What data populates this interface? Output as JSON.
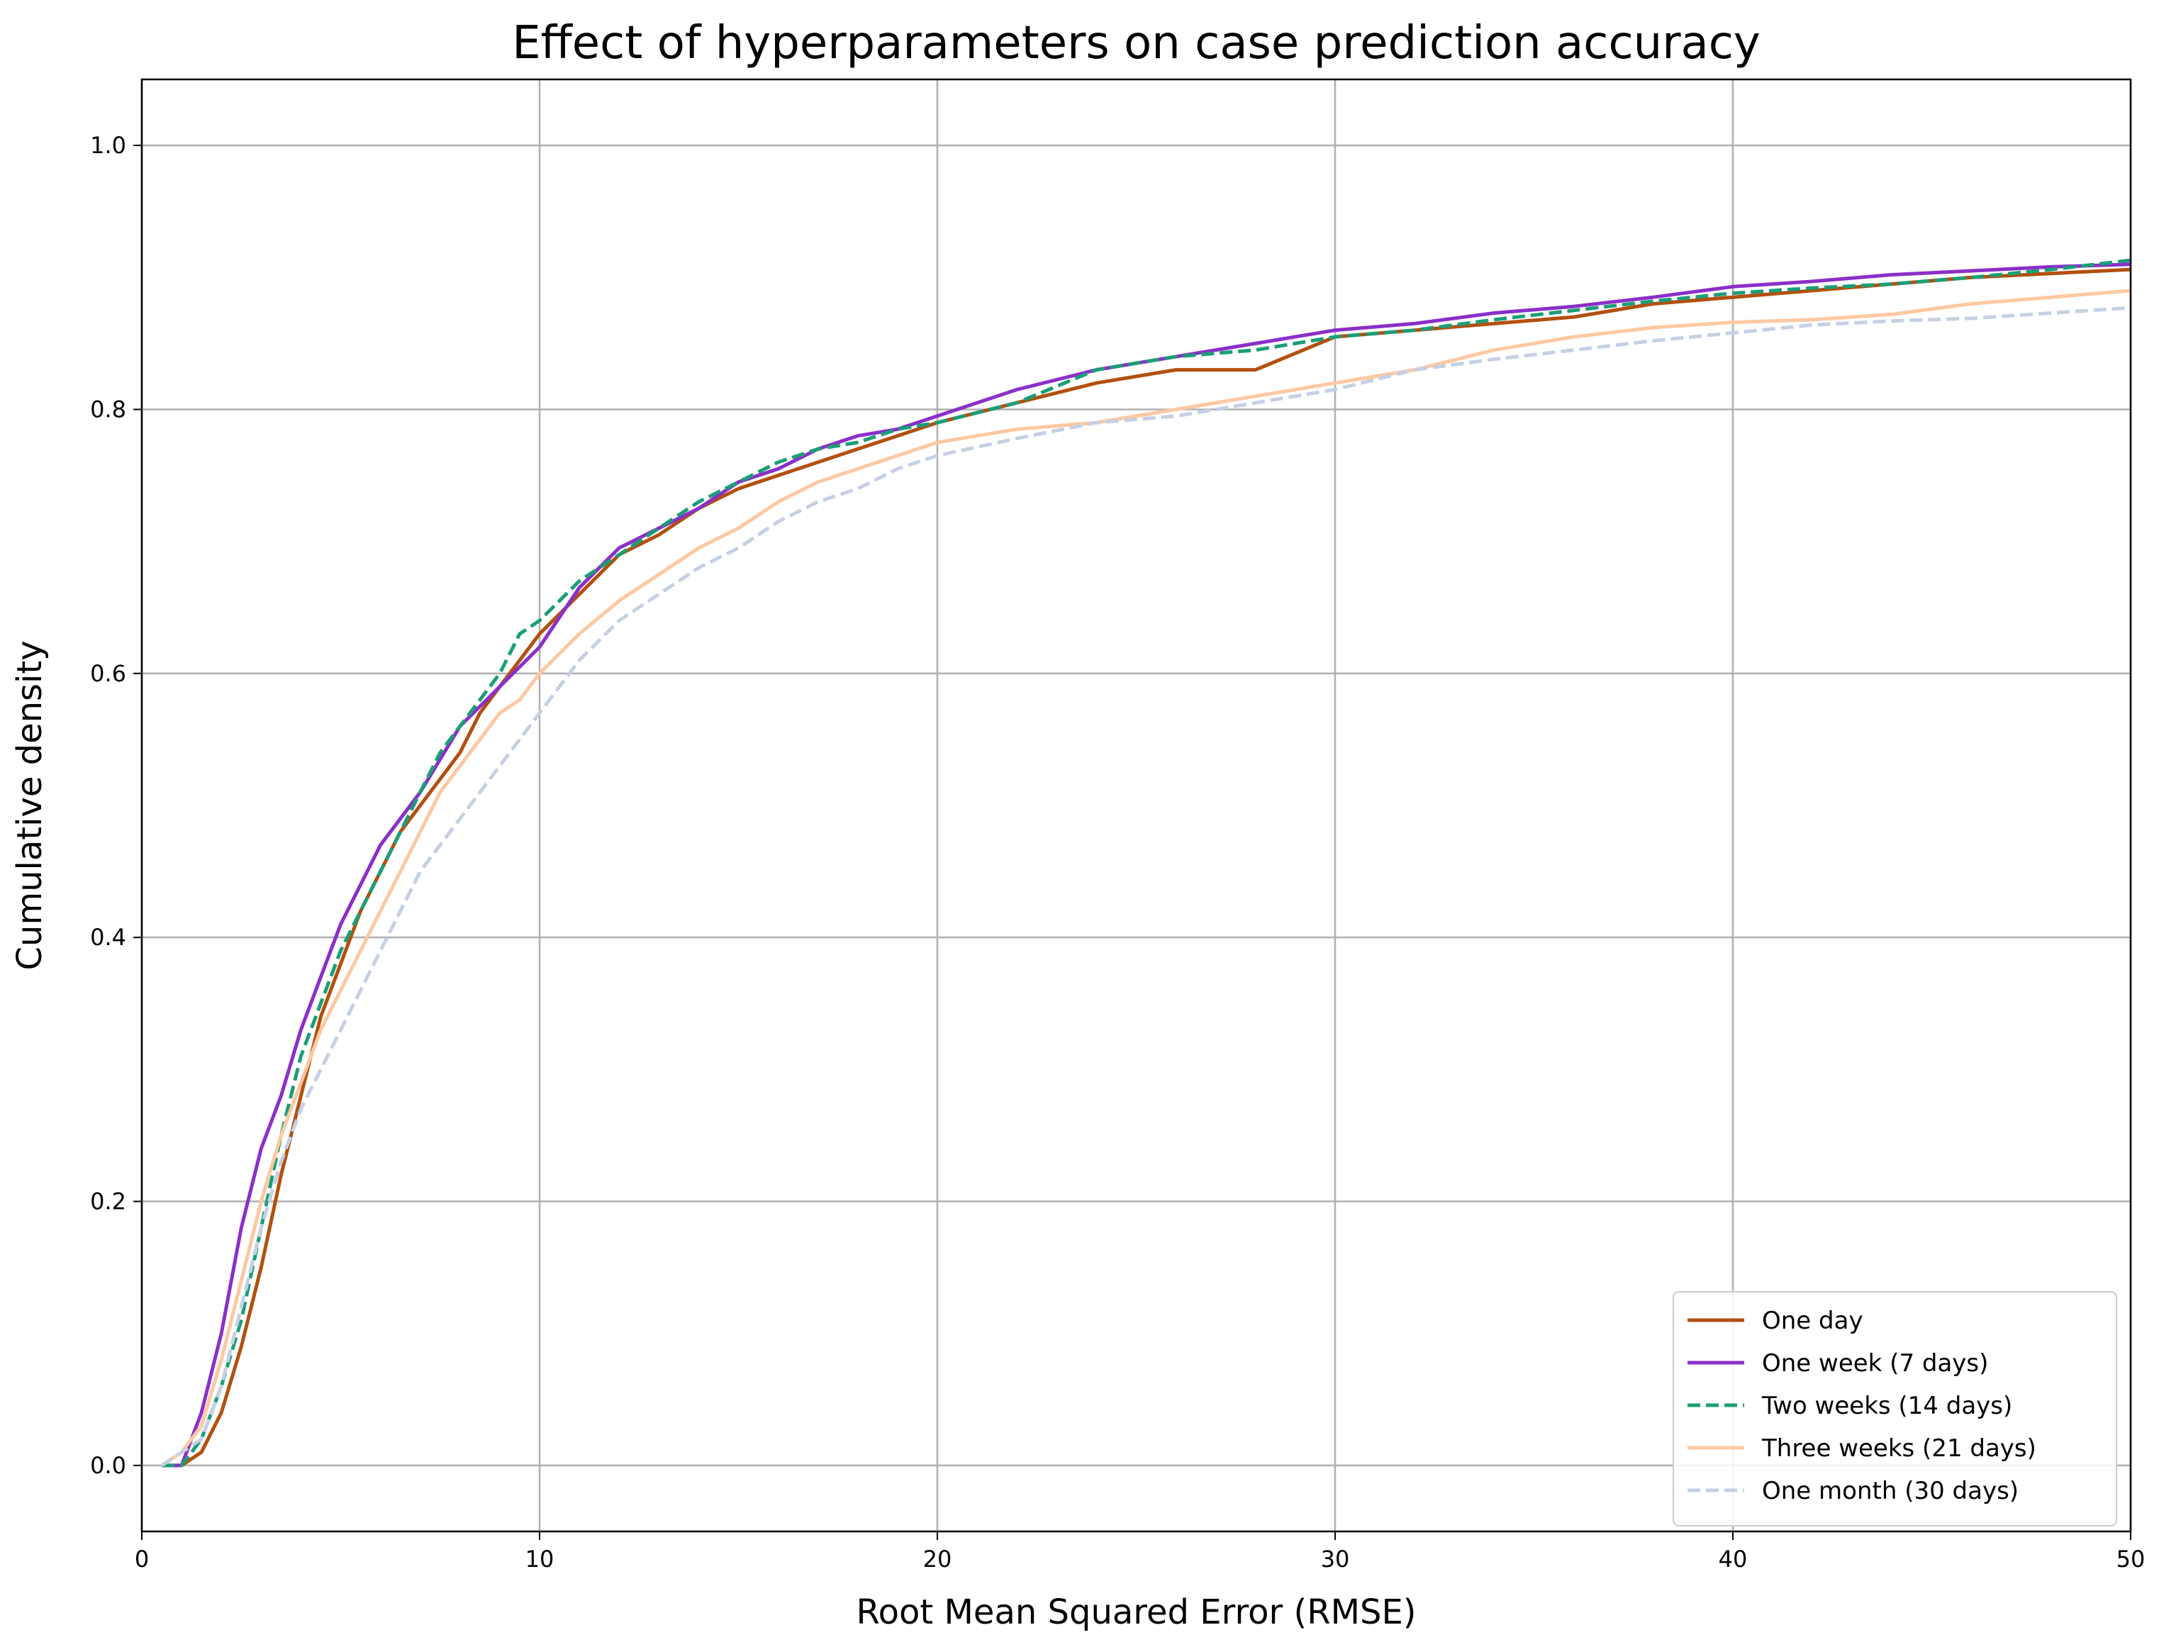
{
  "chart_data": {
    "type": "line",
    "title": "Effect of hyperparameters on case prediction accuracy",
    "xlabel": "Root Mean Squared Error (RMSE)",
    "ylabel": "Cumulative density",
    "xlim": [
      0,
      50
    ],
    "ylim": [
      -0.05,
      1.05
    ],
    "x_ticks": [
      0,
      10,
      20,
      30,
      40,
      50
    ],
    "x_tick_labels": [
      "0",
      "10",
      "20",
      "30",
      "40",
      "50"
    ],
    "y_ticks": [
      0.0,
      0.2,
      0.4,
      0.6,
      0.8,
      1.0
    ],
    "y_tick_labels": [
      "0.0",
      "0.2",
      "0.4",
      "0.6",
      "0.8",
      "1.0"
    ],
    "grid": true,
    "legend_position": "lower-right",
    "series": [
      {
        "name": "One day",
        "color": "#b2500f",
        "dash": "solid",
        "x": [
          0.5,
          1.0,
          1.5,
          2.0,
          2.5,
          3.0,
          3.5,
          4.0,
          4.5,
          5.0,
          5.5,
          6.0,
          6.5,
          7.0,
          7.5,
          8.0,
          8.5,
          9.0,
          9.5,
          10.0,
          11.0,
          12.0,
          13.0,
          14.0,
          15.0,
          16.0,
          17.0,
          18.0,
          19.0,
          20.0,
          22.0,
          24.0,
          26.0,
          28.0,
          30.0,
          32.0,
          34.0,
          36.0,
          38.0,
          40.0,
          42.0,
          44.0,
          46.0,
          48.0,
          50.0
        ],
        "y": [
          0.0,
          0.0,
          0.01,
          0.04,
          0.09,
          0.15,
          0.22,
          0.28,
          0.34,
          0.38,
          0.42,
          0.45,
          0.48,
          0.5,
          0.52,
          0.54,
          0.57,
          0.59,
          0.61,
          0.63,
          0.66,
          0.69,
          0.705,
          0.725,
          0.74,
          0.75,
          0.76,
          0.77,
          0.78,
          0.79,
          0.805,
          0.82,
          0.83,
          0.83,
          0.855,
          0.86,
          0.865,
          0.87,
          0.88,
          0.885,
          0.89,
          0.895,
          0.9,
          0.903,
          0.906
        ]
      },
      {
        "name": "One week (7 days)",
        "color": "#8b2fc9",
        "dash": "solid",
        "x": [
          0.5,
          1.0,
          1.5,
          2.0,
          2.5,
          3.0,
          3.5,
          4.0,
          4.5,
          5.0,
          5.5,
          6.0,
          6.5,
          7.0,
          7.5,
          8.0,
          8.5,
          9.0,
          9.5,
          10.0,
          11.0,
          12.0,
          13.0,
          14.0,
          15.0,
          16.0,
          17.0,
          18.0,
          19.0,
          20.0,
          22.0,
          24.0,
          26.0,
          28.0,
          30.0,
          32.0,
          34.0,
          36.0,
          38.0,
          40.0,
          42.0,
          44.0,
          46.0,
          48.0,
          50.0
        ],
        "y": [
          0.0,
          0.0,
          0.04,
          0.1,
          0.18,
          0.24,
          0.28,
          0.33,
          0.37,
          0.41,
          0.44,
          0.47,
          0.49,
          0.51,
          0.535,
          0.56,
          0.575,
          0.59,
          0.605,
          0.62,
          0.665,
          0.695,
          0.71,
          0.725,
          0.745,
          0.755,
          0.77,
          0.78,
          0.785,
          0.795,
          0.815,
          0.83,
          0.84,
          0.85,
          0.86,
          0.865,
          0.873,
          0.878,
          0.885,
          0.893,
          0.897,
          0.902,
          0.905,
          0.908,
          0.91
        ]
      },
      {
        "name": "Two weeks (14 days)",
        "color": "#1b9e77",
        "dash": "dashed",
        "x": [
          0.5,
          1.0,
          1.5,
          2.0,
          2.5,
          3.0,
          3.5,
          4.0,
          4.5,
          5.0,
          5.5,
          6.0,
          6.5,
          7.0,
          7.5,
          8.0,
          8.5,
          9.0,
          9.5,
          10.0,
          11.0,
          12.0,
          13.0,
          14.0,
          15.0,
          16.0,
          17.0,
          18.0,
          19.0,
          20.0,
          22.0,
          24.0,
          26.0,
          28.0,
          30.0,
          32.0,
          34.0,
          36.0,
          38.0,
          40.0,
          42.0,
          44.0,
          46.0,
          48.0,
          50.0
        ],
        "y": [
          0.0,
          0.0,
          0.02,
          0.06,
          0.11,
          0.18,
          0.25,
          0.31,
          0.35,
          0.39,
          0.42,
          0.45,
          0.48,
          0.51,
          0.54,
          0.56,
          0.58,
          0.6,
          0.63,
          0.64,
          0.67,
          0.69,
          0.71,
          0.73,
          0.745,
          0.76,
          0.77,
          0.775,
          0.785,
          0.79,
          0.805,
          0.83,
          0.84,
          0.845,
          0.855,
          0.86,
          0.868,
          0.875,
          0.882,
          0.888,
          0.892,
          0.895,
          0.9,
          0.906,
          0.913
        ]
      },
      {
        "name": "Three weeks (21 days)",
        "color": "#fdc8a2",
        "dash": "solid",
        "x": [
          0.5,
          1.0,
          1.5,
          2.0,
          2.5,
          3.0,
          3.5,
          4.0,
          4.5,
          5.0,
          5.5,
          6.0,
          6.5,
          7.0,
          7.5,
          8.0,
          8.5,
          9.0,
          9.5,
          10.0,
          11.0,
          12.0,
          13.0,
          14.0,
          15.0,
          16.0,
          17.0,
          18.0,
          19.0,
          20.0,
          22.0,
          24.0,
          26.0,
          28.0,
          30.0,
          32.0,
          34.0,
          36.0,
          38.0,
          40.0,
          42.0,
          44.0,
          46.0,
          48.0,
          50.0
        ],
        "y": [
          0.0,
          0.01,
          0.03,
          0.08,
          0.14,
          0.2,
          0.25,
          0.29,
          0.33,
          0.36,
          0.39,
          0.42,
          0.45,
          0.48,
          0.51,
          0.53,
          0.55,
          0.57,
          0.58,
          0.6,
          0.63,
          0.655,
          0.675,
          0.695,
          0.71,
          0.73,
          0.745,
          0.755,
          0.765,
          0.775,
          0.785,
          0.79,
          0.8,
          0.81,
          0.82,
          0.83,
          0.845,
          0.855,
          0.862,
          0.866,
          0.868,
          0.872,
          0.88,
          0.885,
          0.89
        ]
      },
      {
        "name": "One month (30 days)",
        "color": "#c6d0e4",
        "dash": "dashed",
        "x": [
          0.5,
          1.0,
          1.5,
          2.0,
          2.5,
          3.0,
          3.5,
          4.0,
          4.5,
          5.0,
          5.5,
          6.0,
          6.5,
          7.0,
          7.5,
          8.0,
          8.5,
          9.0,
          9.5,
          10.0,
          11.0,
          12.0,
          13.0,
          14.0,
          15.0,
          16.0,
          17.0,
          18.0,
          19.0,
          20.0,
          22.0,
          24.0,
          26.0,
          28.0,
          30.0,
          32.0,
          34.0,
          36.0,
          38.0,
          40.0,
          42.0,
          44.0,
          46.0,
          48.0,
          50.0
        ],
        "y": [
          0.0,
          0.01,
          0.02,
          0.06,
          0.12,
          0.18,
          0.23,
          0.27,
          0.3,
          0.33,
          0.36,
          0.39,
          0.42,
          0.45,
          0.47,
          0.49,
          0.51,
          0.53,
          0.55,
          0.57,
          0.61,
          0.64,
          0.66,
          0.68,
          0.695,
          0.715,
          0.73,
          0.74,
          0.755,
          0.765,
          0.778,
          0.79,
          0.795,
          0.805,
          0.815,
          0.83,
          0.838,
          0.845,
          0.852,
          0.858,
          0.864,
          0.867,
          0.869,
          0.873,
          0.877
        ]
      }
    ]
  }
}
